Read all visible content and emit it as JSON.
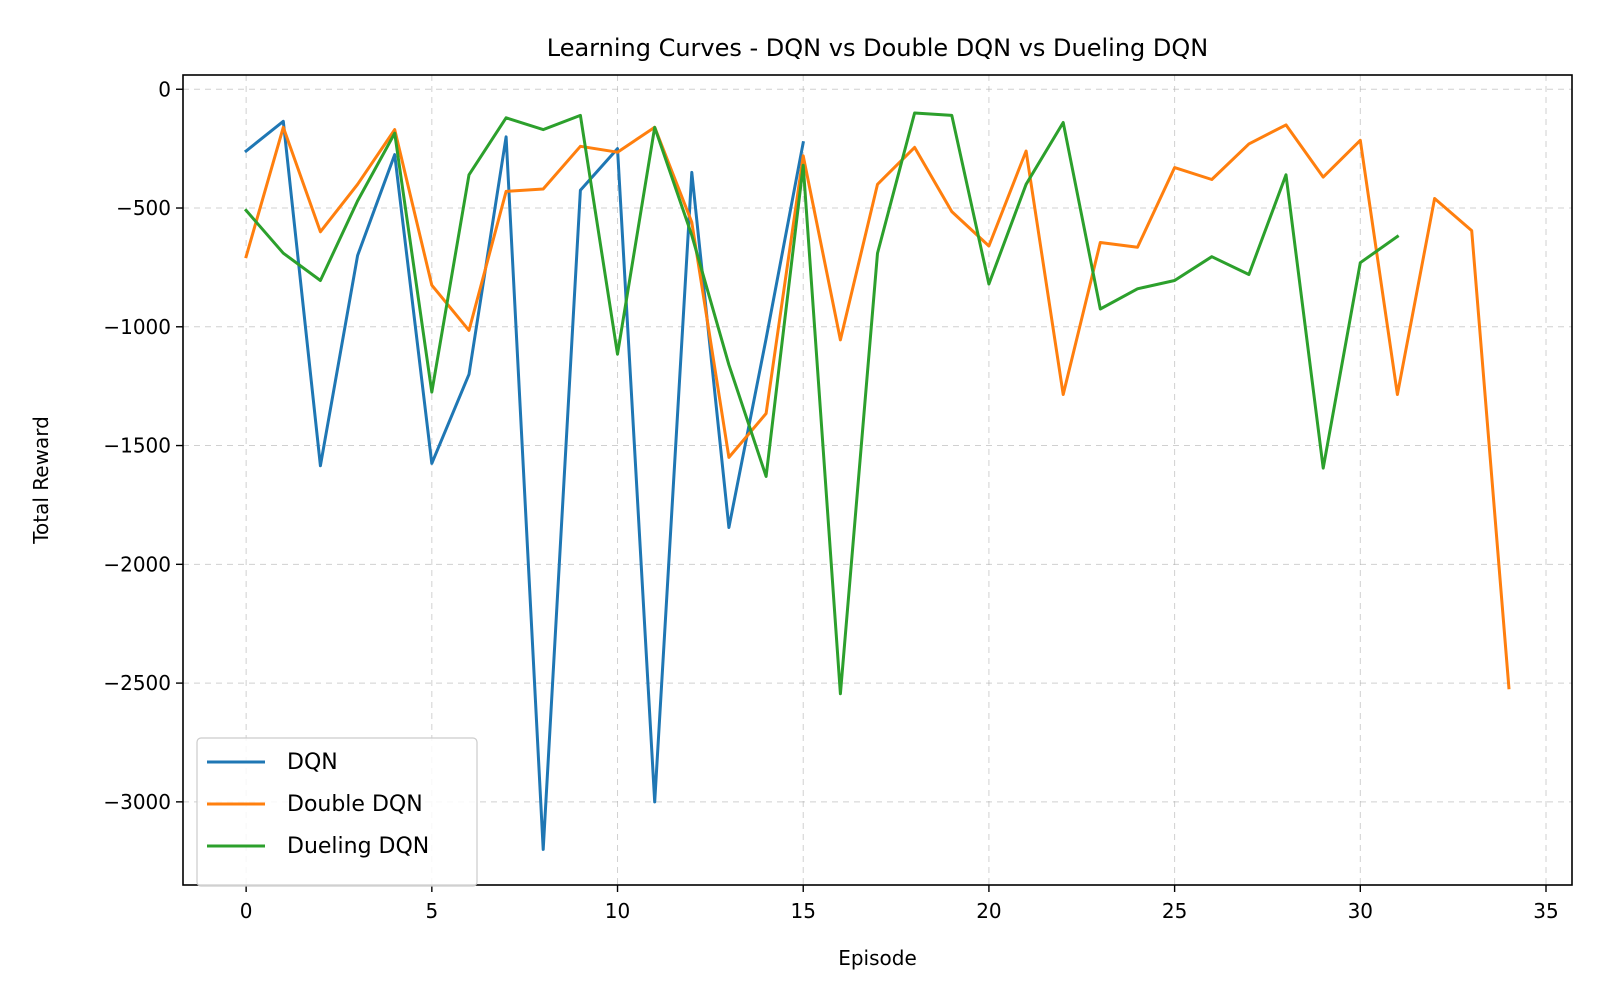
{
  "chart_data": {
    "type": "line",
    "title": "Learning Curves - DQN vs Double DQN vs Dueling DQN",
    "xlabel": "Episode",
    "ylabel": "Total Reward",
    "xlim": [
      -1.7,
      35.7
    ],
    "ylim": [
      -3350,
      60
    ],
    "xticks": [
      0,
      5,
      10,
      15,
      20,
      25,
      30,
      35
    ],
    "xtick_labels": [
      "0",
      "5",
      "10",
      "15",
      "20",
      "25",
      "30",
      "35"
    ],
    "yticks": [
      0,
      -500,
      -1000,
      -1500,
      -2000,
      -2500,
      -3000
    ],
    "ytick_labels": [
      "0",
      "−500",
      "−1000",
      "−1500",
      "−2000",
      "−2500",
      "−3000"
    ],
    "grid": true,
    "legend_position": "lower-left",
    "series": [
      {
        "name": "DQN",
        "color": "#1f77b4",
        "x": [
          0,
          1,
          2,
          3,
          4,
          5,
          6,
          7,
          8,
          9,
          10,
          11,
          12,
          13,
          14,
          15
        ],
        "values": [
          -260,
          -135,
          -1585,
          -700,
          -275,
          -1575,
          -1200,
          -200,
          -3200,
          -425,
          -250,
          -3000,
          -350,
          -1845,
          -1050,
          -225
        ]
      },
      {
        "name": "Double DQN",
        "color": "#ff7f0e",
        "x": [
          0,
          1,
          2,
          3,
          4,
          5,
          6,
          7,
          8,
          9,
          10,
          11,
          12,
          13,
          14,
          15,
          16,
          17,
          18,
          19,
          20,
          21,
          22,
          23,
          24,
          25,
          26,
          27,
          28,
          29,
          30,
          31,
          32,
          33,
          34
        ],
        "values": [
          -705,
          -160,
          -600,
          -400,
          -170,
          -825,
          -1015,
          -430,
          -420,
          -240,
          -265,
          -160,
          -560,
          -1550,
          -1365,
          -280,
          -1055,
          -400,
          -245,
          -515,
          -660,
          -260,
          -1285,
          -645,
          -665,
          -330,
          -380,
          -230,
          -150,
          -370,
          -215,
          -1285,
          -460,
          -595,
          -2520
        ]
      },
      {
        "name": "Dueling DQN",
        "color": "#2ca02c",
        "x": [
          0,
          1,
          2,
          3,
          4,
          5,
          6,
          7,
          8,
          9,
          10,
          11,
          12,
          13,
          14,
          15,
          16,
          17,
          18,
          19,
          20,
          21,
          22,
          23,
          24,
          25,
          26,
          27,
          28,
          29,
          30,
          31
        ],
        "values": [
          -510,
          -690,
          -805,
          -470,
          -185,
          -1275,
          -360,
          -120,
          -170,
          -110,
          -1115,
          -160,
          -615,
          -1160,
          -1630,
          -320,
          -2545,
          -690,
          -100,
          -110,
          -820,
          -400,
          -140,
          -925,
          -840,
          -805,
          -705,
          -780,
          -360,
          -1595,
          -730,
          -620
        ]
      }
    ]
  }
}
